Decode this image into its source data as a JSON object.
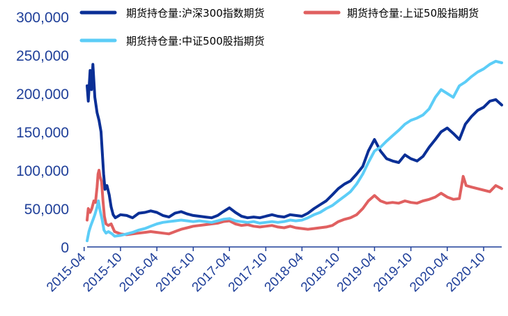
{
  "chart_data": {
    "type": "line",
    "title": "",
    "xlabel": "",
    "ylabel": "",
    "xlim": [
      "2015-04-16",
      "2020-12-31"
    ],
    "ylim": [
      0,
      300000
    ],
    "grid": false,
    "legend_position": "top",
    "y_ticks": [
      "0",
      "50,000",
      "100,000",
      "150,000",
      "200,000",
      "250,000",
      "300,000"
    ],
    "x_ticks": [
      "2015-04",
      "2015-10",
      "2016-04",
      "2016-10",
      "2017-04",
      "2017-10",
      "2018-04",
      "2018-10",
      "2019-04",
      "2019-10",
      "2020-04",
      "2020-10"
    ],
    "series": [
      {
        "name": "期货持仓量:沪深300指数期货",
        "color": "#0a2f96",
        "points": [
          [
            "2015-04-16",
            210000
          ],
          [
            "2015-04-22",
            190000
          ],
          [
            "2015-05-01",
            230000
          ],
          [
            "2015-05-08",
            205000
          ],
          [
            "2015-05-15",
            238000
          ],
          [
            "2015-05-25",
            195000
          ],
          [
            "2015-06-05",
            175000
          ],
          [
            "2015-06-15",
            165000
          ],
          [
            "2015-06-25",
            150000
          ],
          [
            "2015-07-02",
            120000
          ],
          [
            "2015-07-08",
            95000
          ],
          [
            "2015-07-15",
            75000
          ],
          [
            "2015-07-25",
            80000
          ],
          [
            "2015-08-05",
            68000
          ],
          [
            "2015-08-15",
            52000
          ],
          [
            "2015-08-25",
            42000
          ],
          [
            "2015-09-05",
            38000
          ],
          [
            "2015-10-01",
            42000
          ],
          [
            "2015-11-01",
            41000
          ],
          [
            "2015-12-01",
            38000
          ],
          [
            "2016-01-01",
            44000
          ],
          [
            "2016-02-01",
            45000
          ],
          [
            "2016-03-01",
            47000
          ],
          [
            "2016-04-01",
            45000
          ],
          [
            "2016-05-01",
            41000
          ],
          [
            "2016-06-01",
            39000
          ],
          [
            "2016-07-01",
            44000
          ],
          [
            "2016-08-01",
            46000
          ],
          [
            "2016-09-01",
            43000
          ],
          [
            "2016-10-01",
            41000
          ],
          [
            "2016-11-01",
            40000
          ],
          [
            "2016-12-01",
            39000
          ],
          [
            "2017-01-01",
            38000
          ],
          [
            "2017-02-01",
            41000
          ],
          [
            "2017-03-01",
            46000
          ],
          [
            "2017-04-01",
            51000
          ],
          [
            "2017-05-01",
            45000
          ],
          [
            "2017-06-01",
            40000
          ],
          [
            "2017-07-01",
            38000
          ],
          [
            "2017-08-01",
            39000
          ],
          [
            "2017-09-01",
            38000
          ],
          [
            "2017-10-01",
            40000
          ],
          [
            "2017-11-01",
            42000
          ],
          [
            "2017-12-01",
            40000
          ],
          [
            "2018-01-01",
            39000
          ],
          [
            "2018-02-01",
            42000
          ],
          [
            "2018-03-01",
            41000
          ],
          [
            "2018-04-01",
            40000
          ],
          [
            "2018-05-01",
            44000
          ],
          [
            "2018-06-01",
            50000
          ],
          [
            "2018-07-01",
            55000
          ],
          [
            "2018-08-01",
            60000
          ],
          [
            "2018-09-01",
            68000
          ],
          [
            "2018-10-01",
            76000
          ],
          [
            "2018-11-01",
            82000
          ],
          [
            "2018-12-01",
            86000
          ],
          [
            "2019-01-01",
            95000
          ],
          [
            "2019-02-01",
            105000
          ],
          [
            "2019-03-01",
            125000
          ],
          [
            "2019-04-01",
            140000
          ],
          [
            "2019-05-01",
            125000
          ],
          [
            "2019-06-01",
            115000
          ],
          [
            "2019-07-01",
            112000
          ],
          [
            "2019-08-01",
            110000
          ],
          [
            "2019-09-01",
            120000
          ],
          [
            "2019-10-01",
            115000
          ],
          [
            "2019-11-01",
            112000
          ],
          [
            "2019-12-01",
            118000
          ],
          [
            "2020-01-01",
            130000
          ],
          [
            "2020-02-01",
            140000
          ],
          [
            "2020-03-01",
            150000
          ],
          [
            "2020-04-01",
            155000
          ],
          [
            "2020-05-01",
            148000
          ],
          [
            "2020-06-01",
            140000
          ],
          [
            "2020-07-01",
            160000
          ],
          [
            "2020-08-01",
            170000
          ],
          [
            "2020-09-01",
            178000
          ],
          [
            "2020-10-01",
            182000
          ],
          [
            "2020-11-01",
            190000
          ],
          [
            "2020-12-01",
            192000
          ],
          [
            "2020-12-31",
            185000
          ]
        ]
      },
      {
        "name": "期货持仓量:上证50股指期货",
        "color": "#e06060",
        "points": [
          [
            "2015-04-16",
            35000
          ],
          [
            "2015-04-22",
            50000
          ],
          [
            "2015-05-01",
            45000
          ],
          [
            "2015-05-10",
            50000
          ],
          [
            "2015-05-20",
            60000
          ],
          [
            "2015-05-28",
            58000
          ],
          [
            "2015-06-05",
            78000
          ],
          [
            "2015-06-10",
            95000
          ],
          [
            "2015-06-15",
            100000
          ],
          [
            "2015-06-20",
            92000
          ],
          [
            "2015-06-28",
            85000
          ],
          [
            "2015-07-05",
            60000
          ],
          [
            "2015-07-12",
            40000
          ],
          [
            "2015-07-20",
            30000
          ],
          [
            "2015-08-01",
            28000
          ],
          [
            "2015-08-15",
            30000
          ],
          [
            "2015-09-01",
            20000
          ],
          [
            "2015-10-01",
            17000
          ],
          [
            "2015-11-01",
            16000
          ],
          [
            "2015-12-01",
            17000
          ],
          [
            "2016-01-01",
            18000
          ],
          [
            "2016-02-01",
            19000
          ],
          [
            "2016-03-01",
            20000
          ],
          [
            "2016-04-01",
            19000
          ],
          [
            "2016-05-01",
            18000
          ],
          [
            "2016-06-01",
            17000
          ],
          [
            "2016-07-01",
            20000
          ],
          [
            "2016-08-01",
            23000
          ],
          [
            "2016-09-01",
            25000
          ],
          [
            "2016-10-01",
            27000
          ],
          [
            "2016-11-01",
            28000
          ],
          [
            "2016-12-01",
            29000
          ],
          [
            "2017-01-01",
            30000
          ],
          [
            "2017-02-01",
            31000
          ],
          [
            "2017-03-01",
            33000
          ],
          [
            "2017-04-01",
            34000
          ],
          [
            "2017-05-01",
            30000
          ],
          [
            "2017-06-01",
            28000
          ],
          [
            "2017-07-01",
            29000
          ],
          [
            "2017-08-01",
            27000
          ],
          [
            "2017-09-01",
            26000
          ],
          [
            "2017-10-01",
            27000
          ],
          [
            "2017-11-01",
            28000
          ],
          [
            "2017-12-01",
            26000
          ],
          [
            "2018-01-01",
            25000
          ],
          [
            "2018-02-01",
            27000
          ],
          [
            "2018-03-01",
            25000
          ],
          [
            "2018-04-01",
            24000
          ],
          [
            "2018-05-01",
            23000
          ],
          [
            "2018-06-01",
            24000
          ],
          [
            "2018-07-01",
            25000
          ],
          [
            "2018-08-01",
            26000
          ],
          [
            "2018-09-01",
            28000
          ],
          [
            "2018-10-01",
            33000
          ],
          [
            "2018-11-01",
            36000
          ],
          [
            "2018-12-01",
            38000
          ],
          [
            "2019-01-01",
            42000
          ],
          [
            "2019-02-01",
            50000
          ],
          [
            "2019-03-01",
            60000
          ],
          [
            "2019-04-01",
            67000
          ],
          [
            "2019-05-01",
            60000
          ],
          [
            "2019-06-01",
            57000
          ],
          [
            "2019-07-01",
            58000
          ],
          [
            "2019-08-01",
            57000
          ],
          [
            "2019-09-01",
            60000
          ],
          [
            "2019-10-01",
            58000
          ],
          [
            "2019-11-01",
            57000
          ],
          [
            "2019-12-01",
            60000
          ],
          [
            "2020-01-01",
            62000
          ],
          [
            "2020-02-01",
            65000
          ],
          [
            "2020-03-01",
            70000
          ],
          [
            "2020-04-01",
            65000
          ],
          [
            "2020-05-01",
            62000
          ],
          [
            "2020-06-01",
            63000
          ],
          [
            "2020-06-20",
            92000
          ],
          [
            "2020-07-05",
            80000
          ],
          [
            "2020-08-01",
            78000
          ],
          [
            "2020-09-01",
            76000
          ],
          [
            "2020-10-01",
            74000
          ],
          [
            "2020-11-01",
            72000
          ],
          [
            "2020-12-01",
            80000
          ],
          [
            "2020-12-31",
            76000
          ]
        ]
      },
      {
        "name": "期货持仓量:中证500股指期货",
        "color": "#5ccdf7",
        "points": [
          [
            "2015-04-16",
            8000
          ],
          [
            "2015-04-25",
            20000
          ],
          [
            "2015-05-05",
            28000
          ],
          [
            "2015-05-15",
            35000
          ],
          [
            "2015-05-25",
            42000
          ],
          [
            "2015-06-05",
            52000
          ],
          [
            "2015-06-12",
            60000
          ],
          [
            "2015-06-20",
            48000
          ],
          [
            "2015-07-01",
            35000
          ],
          [
            "2015-07-10",
            22000
          ],
          [
            "2015-07-20",
            18000
          ],
          [
            "2015-08-01",
            20000
          ],
          [
            "2015-08-20",
            17000
          ],
          [
            "2015-09-01",
            14000
          ],
          [
            "2015-10-01",
            15000
          ],
          [
            "2015-11-01",
            17000
          ],
          [
            "2015-12-01",
            19000
          ],
          [
            "2016-01-01",
            22000
          ],
          [
            "2016-02-01",
            24000
          ],
          [
            "2016-03-01",
            27000
          ],
          [
            "2016-04-01",
            30000
          ],
          [
            "2016-05-01",
            32000
          ],
          [
            "2016-06-01",
            33000
          ],
          [
            "2016-07-01",
            34000
          ],
          [
            "2016-08-01",
            35000
          ],
          [
            "2016-09-01",
            34000
          ],
          [
            "2016-10-01",
            33000
          ],
          [
            "2016-11-01",
            34000
          ],
          [
            "2016-12-01",
            33000
          ],
          [
            "2017-01-01",
            32000
          ],
          [
            "2017-02-01",
            34000
          ],
          [
            "2017-03-01",
            36000
          ],
          [
            "2017-04-01",
            37000
          ],
          [
            "2017-05-01",
            34000
          ],
          [
            "2017-06-01",
            33000
          ],
          [
            "2017-07-01",
            32000
          ],
          [
            "2017-08-01",
            33000
          ],
          [
            "2017-09-01",
            31000
          ],
          [
            "2017-10-01",
            32000
          ],
          [
            "2017-11-01",
            33000
          ],
          [
            "2017-12-01",
            32000
          ],
          [
            "2018-01-01",
            33000
          ],
          [
            "2018-02-01",
            35000
          ],
          [
            "2018-03-01",
            34000
          ],
          [
            "2018-04-01",
            35000
          ],
          [
            "2018-05-01",
            38000
          ],
          [
            "2018-06-01",
            42000
          ],
          [
            "2018-07-01",
            45000
          ],
          [
            "2018-08-01",
            50000
          ],
          [
            "2018-09-01",
            54000
          ],
          [
            "2018-10-01",
            60000
          ],
          [
            "2018-11-01",
            66000
          ],
          [
            "2018-12-01",
            72000
          ],
          [
            "2019-01-01",
            82000
          ],
          [
            "2019-02-01",
            95000
          ],
          [
            "2019-03-01",
            110000
          ],
          [
            "2019-04-01",
            125000
          ],
          [
            "2019-05-01",
            130000
          ],
          [
            "2019-06-01",
            138000
          ],
          [
            "2019-07-01",
            145000
          ],
          [
            "2019-08-01",
            152000
          ],
          [
            "2019-09-01",
            160000
          ],
          [
            "2019-10-01",
            165000
          ],
          [
            "2019-11-01",
            168000
          ],
          [
            "2019-12-01",
            172000
          ],
          [
            "2020-01-01",
            180000
          ],
          [
            "2020-02-01",
            195000
          ],
          [
            "2020-03-01",
            205000
          ],
          [
            "2020-04-01",
            200000
          ],
          [
            "2020-05-01",
            195000
          ],
          [
            "2020-06-01",
            210000
          ],
          [
            "2020-07-01",
            215000
          ],
          [
            "2020-08-01",
            222000
          ],
          [
            "2020-09-01",
            228000
          ],
          [
            "2020-10-01",
            232000
          ],
          [
            "2020-11-01",
            238000
          ],
          [
            "2020-12-01",
            242000
          ],
          [
            "2020-12-31",
            240000
          ]
        ]
      }
    ]
  }
}
